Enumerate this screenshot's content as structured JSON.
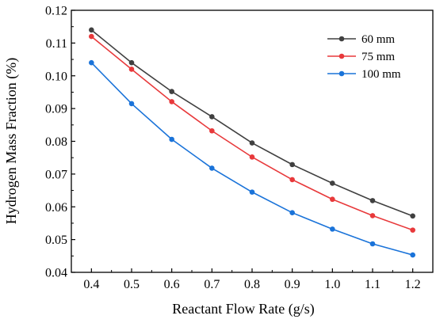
{
  "chart_data": {
    "type": "line",
    "title": "",
    "xlabel": "Reactant Flow Rate (g/s)",
    "ylabel": "Hydrogen Mass Fraction (%)",
    "xlim": [
      0.35,
      1.25
    ],
    "ylim": [
      0.04,
      0.12
    ],
    "x": [
      0.4,
      0.5,
      0.6,
      0.7,
      0.8,
      0.9,
      1.0,
      1.1,
      1.2
    ],
    "x_ticks": [
      "0.4",
      "0.5",
      "0.6",
      "0.7",
      "0.8",
      "0.9",
      "1.0",
      "1.1",
      "1.2"
    ],
    "y_ticks": [
      "0.04",
      "0.05",
      "0.06",
      "0.07",
      "0.08",
      "0.09",
      "0.10",
      "0.11",
      "0.12"
    ],
    "grid": false,
    "legend_position": "top-right",
    "series": [
      {
        "name": "60 mm",
        "color": "#404040",
        "values": [
          0.114,
          0.104,
          0.0952,
          0.0875,
          0.0795,
          0.0729,
          0.0672,
          0.0619,
          0.0572
        ]
      },
      {
        "name": "75 mm",
        "color": "#e8393b",
        "values": [
          0.112,
          0.102,
          0.0921,
          0.0832,
          0.0752,
          0.0683,
          0.0623,
          0.0573,
          0.0529
        ]
      },
      {
        "name": "100 mm",
        "color": "#1a73d9",
        "values": [
          0.104,
          0.0915,
          0.0806,
          0.0718,
          0.0645,
          0.0582,
          0.0532,
          0.0487,
          0.0453
        ]
      }
    ]
  }
}
